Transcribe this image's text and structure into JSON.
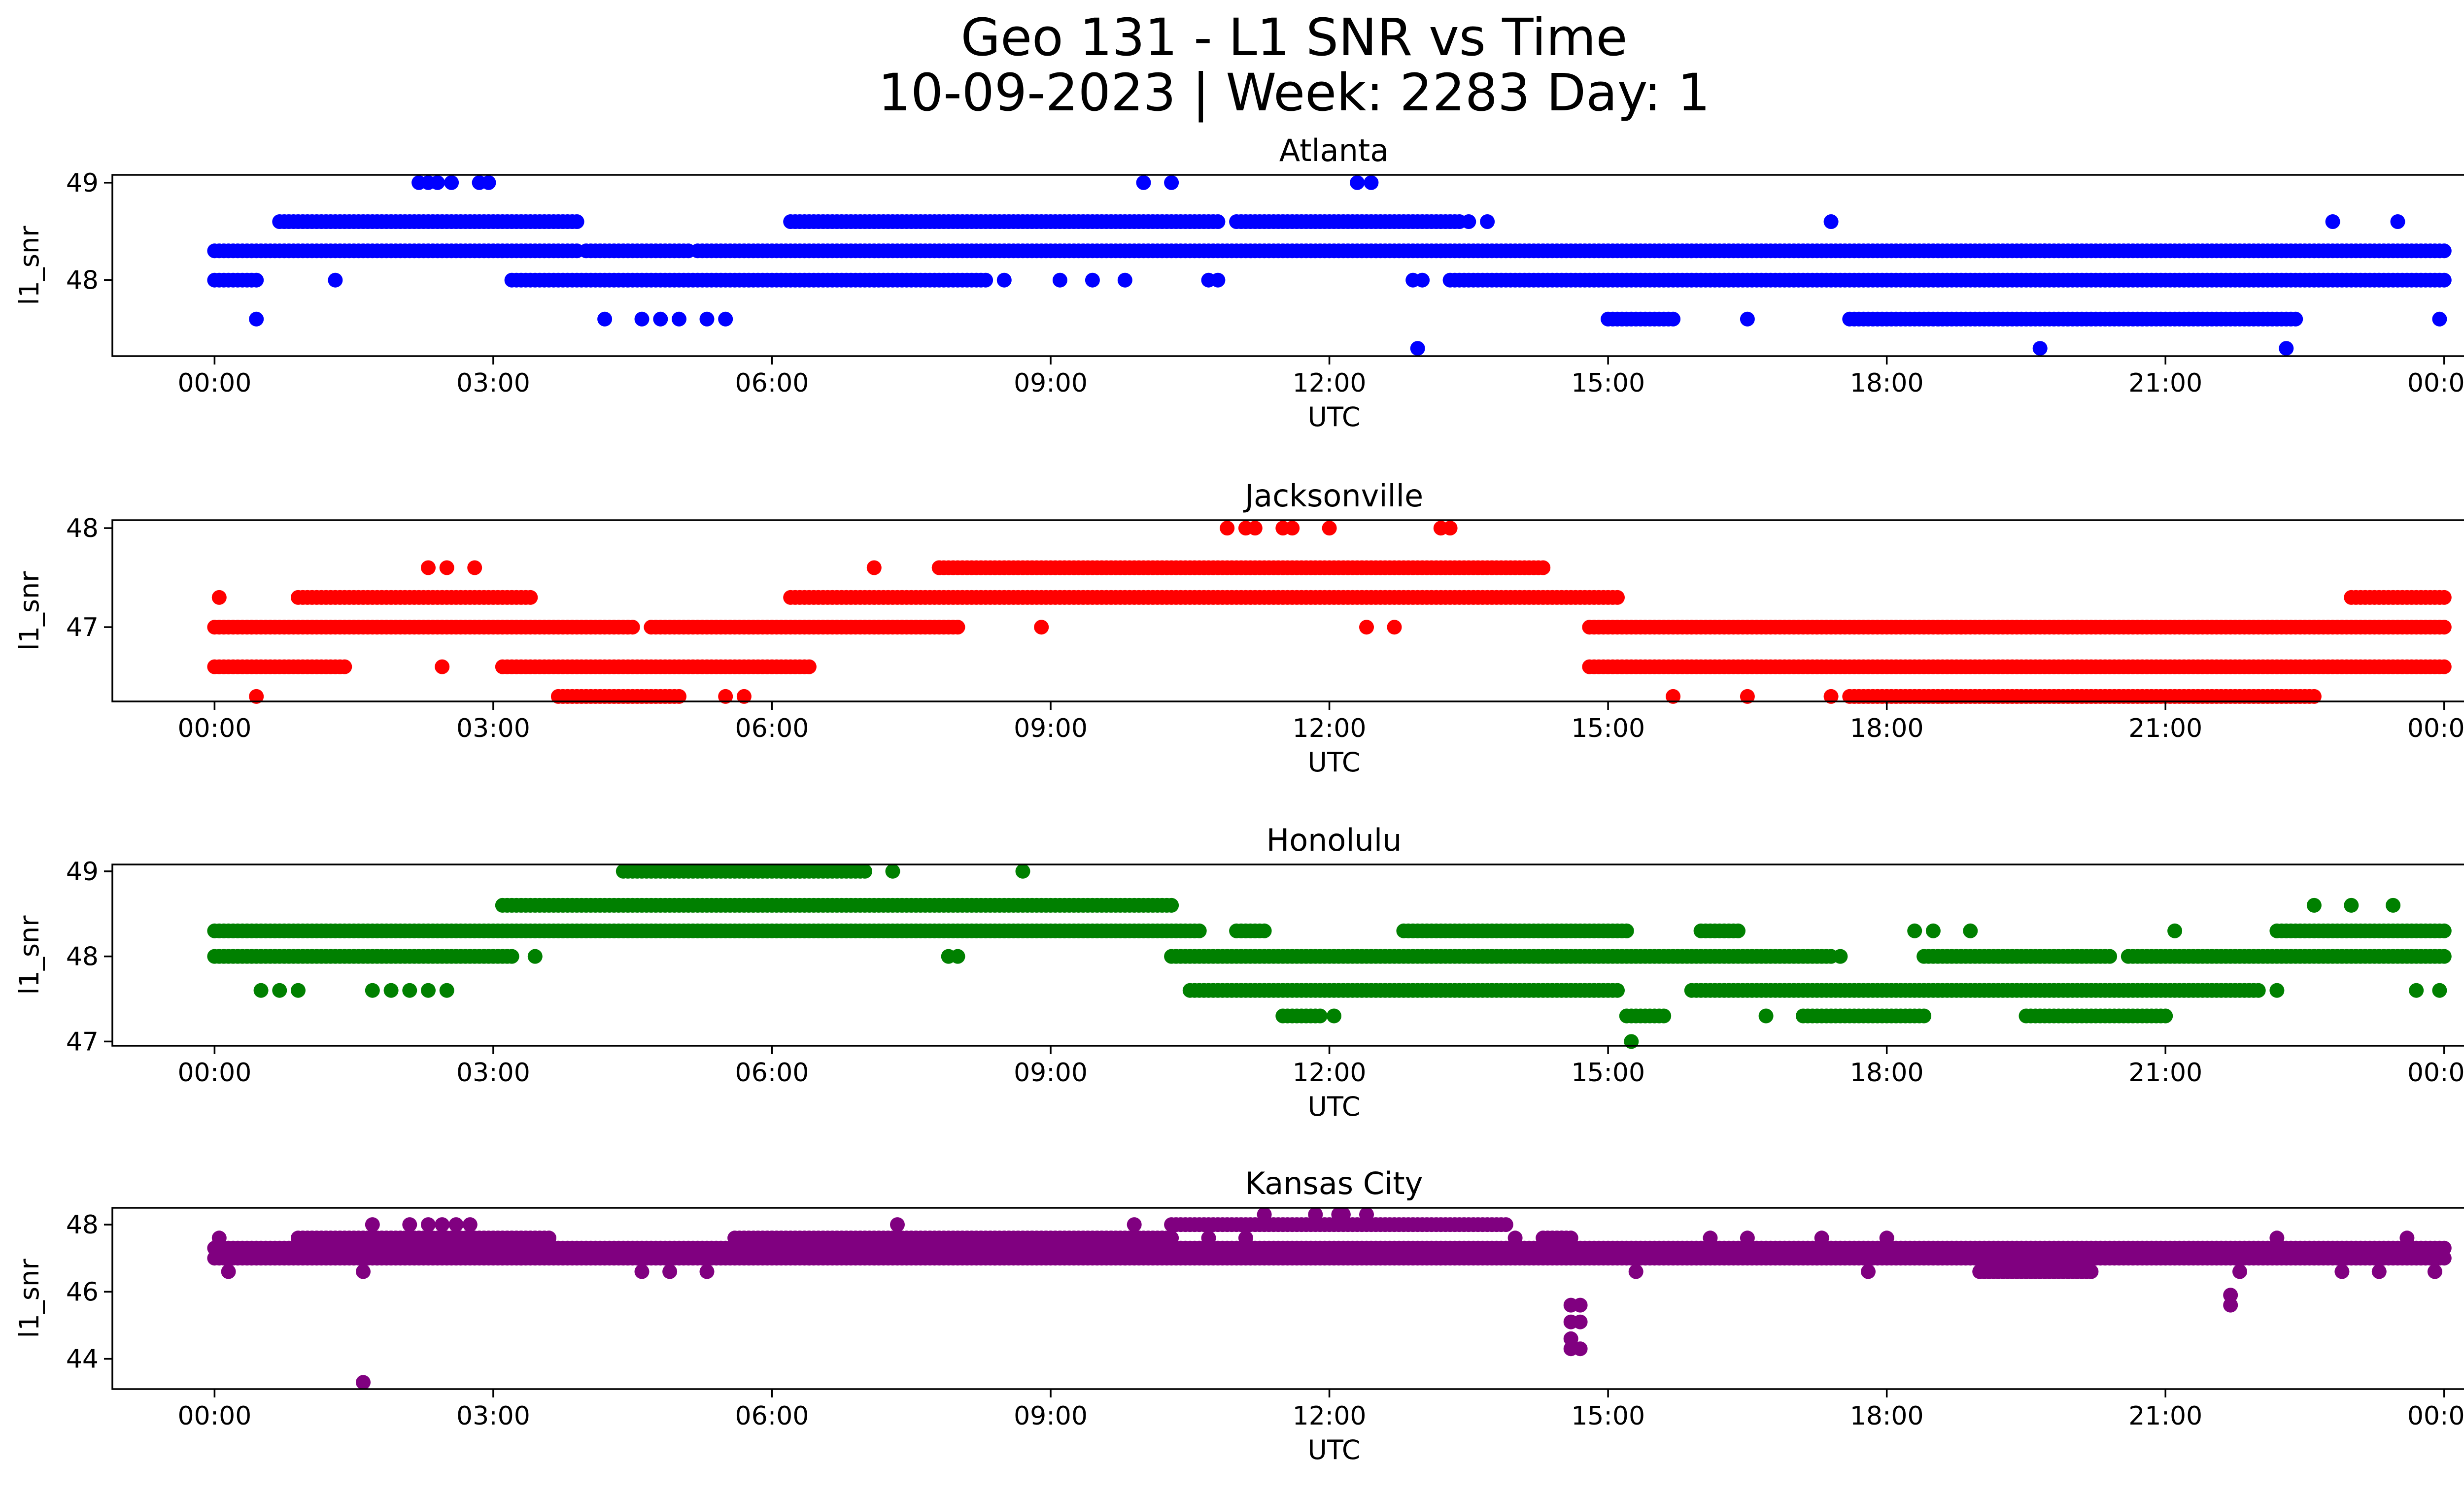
{
  "figure": {
    "title_line1": "Geo 131 - L1 SNR vs Time",
    "title_line2": "10-09-2023 | Week: 2283 Day: 1"
  },
  "chart_data": [
    {
      "type": "scatter",
      "title": "Atlanta",
      "xlabel": "UTC",
      "ylabel": "l1_snr",
      "color": "#0000ff",
      "xlim_hours": [
        -1.1,
        25.2
      ],
      "ylim": [
        47.22,
        49.08
      ],
      "x_ticks": [
        "00:00",
        "03:00",
        "06:00",
        "09:00",
        "12:00",
        "15:00",
        "18:00",
        "21:00",
        "00:00"
      ],
      "y_ticks": [
        48,
        49
      ],
      "y_tick_labels": [
        "48",
        "49"
      ],
      "bands": [
        {
          "y": 48.3,
          "ranges": [
            [
              0.0,
              3.9
            ],
            [
              4.0,
              5.1
            ],
            [
              5.2,
              24.0
            ]
          ]
        },
        {
          "y": 48.0,
          "ranges": [
            [
              0.0,
              0.45
            ],
            [
              3.2,
              8.3
            ],
            [
              13.3,
              24.0
            ]
          ]
        },
        {
          "y": 48.6,
          "ranges": [
            [
              0.7,
              3.9
            ],
            [
              6.2,
              10.8
            ],
            [
              11.0,
              13.4
            ]
          ]
        },
        {
          "y": 47.6,
          "ranges": [
            [
              15.0,
              15.7
            ],
            [
              17.6,
              22.4
            ]
          ]
        }
      ],
      "points": [
        [
          0.45,
          47.6
        ],
        [
          1.3,
          48.0
        ],
        [
          2.2,
          49.0
        ],
        [
          2.3,
          49.0
        ],
        [
          2.4,
          49.0
        ],
        [
          2.55,
          49.0
        ],
        [
          2.85,
          49.0
        ],
        [
          2.95,
          49.0
        ],
        [
          4.2,
          47.6
        ],
        [
          4.6,
          47.6
        ],
        [
          4.8,
          47.6
        ],
        [
          5.0,
          47.6
        ],
        [
          5.3,
          47.6
        ],
        [
          5.5,
          47.6
        ],
        [
          8.5,
          48.0
        ],
        [
          9.1,
          48.0
        ],
        [
          9.45,
          48.0
        ],
        [
          9.8,
          48.0
        ],
        [
          10.0,
          49.0
        ],
        [
          10.3,
          49.0
        ],
        [
          10.7,
          48.0
        ],
        [
          10.8,
          48.0
        ],
        [
          12.3,
          49.0
        ],
        [
          12.45,
          49.0
        ],
        [
          12.95,
          47.3
        ],
        [
          12.9,
          48.0
        ],
        [
          13.0,
          48.0
        ],
        [
          13.5,
          48.6
        ],
        [
          13.7,
          48.6
        ],
        [
          16.5,
          47.6
        ],
        [
          17.4,
          48.6
        ],
        [
          19.45,
          48.3
        ],
        [
          19.7,
          48.3
        ],
        [
          19.65,
          47.3
        ],
        [
          22.3,
          47.3
        ],
        [
          22.8,
          48.6
        ],
        [
          23.5,
          48.6
        ],
        [
          23.95,
          47.6
        ]
      ]
    },
    {
      "type": "scatter",
      "title": "Jacksonville",
      "xlabel": "UTC",
      "ylabel": "l1_snr",
      "color": "#ff0000",
      "xlim_hours": [
        -1.1,
        25.2
      ],
      "ylim": [
        46.25,
        48.08
      ],
      "x_ticks": [
        "00:00",
        "03:00",
        "06:00",
        "09:00",
        "12:00",
        "15:00",
        "18:00",
        "21:00",
        "00:00"
      ],
      "y_ticks": [
        47,
        48
      ],
      "y_tick_labels": [
        "47",
        "48"
      ],
      "bands": [
        {
          "y": 47.0,
          "ranges": [
            [
              0.0,
              4.5
            ],
            [
              4.7,
              8.0
            ],
            [
              14.8,
              24.0
            ]
          ]
        },
        {
          "y": 46.6,
          "ranges": [
            [
              0.0,
              1.4
            ],
            [
              3.1,
              6.4
            ],
            [
              14.8,
              24.0
            ]
          ]
        },
        {
          "y": 47.3,
          "ranges": [
            [
              0.9,
              3.4
            ],
            [
              6.2,
              15.1
            ],
            [
              23.0,
              24.0
            ]
          ]
        },
        {
          "y": 47.6,
          "ranges": [
            [
              7.8,
              14.3
            ]
          ]
        },
        {
          "y": 46.3,
          "ranges": [
            [
              3.7,
              5.0
            ],
            [
              17.6,
              22.6
            ]
          ]
        }
      ],
      "points": [
        [
          0.05,
          47.3
        ],
        [
          0.45,
          46.3
        ],
        [
          2.3,
          47.6
        ],
        [
          2.5,
          47.6
        ],
        [
          2.8,
          47.6
        ],
        [
          2.45,
          46.6
        ],
        [
          5.5,
          46.3
        ],
        [
          5.7,
          46.3
        ],
        [
          7.1,
          47.6
        ],
        [
          7.8,
          47.6
        ],
        [
          8.9,
          47.0
        ],
        [
          10.9,
          48.0
        ],
        [
          11.1,
          48.0
        ],
        [
          11.2,
          48.0
        ],
        [
          11.5,
          48.0
        ],
        [
          11.6,
          48.0
        ],
        [
          12.0,
          48.0
        ],
        [
          12.4,
          47.0
        ],
        [
          12.7,
          47.0
        ],
        [
          13.2,
          48.0
        ],
        [
          13.3,
          48.0
        ],
        [
          15.7,
          46.3
        ],
        [
          16.5,
          46.3
        ],
        [
          17.4,
          46.3
        ],
        [
          18.8,
          47.0
        ]
      ]
    },
    {
      "type": "scatter",
      "title": "Honolulu",
      "xlabel": "UTC",
      "ylabel": "l1_snr",
      "color": "#008000",
      "xlim_hours": [
        -1.1,
        25.2
      ],
      "ylim": [
        46.95,
        49.08
      ],
      "x_ticks": [
        "00:00",
        "03:00",
        "06:00",
        "09:00",
        "12:00",
        "15:00",
        "18:00",
        "21:00",
        "00:00"
      ],
      "y_ticks": [
        47,
        48,
        49
      ],
      "y_tick_labels": [
        "47",
        "48",
        "49"
      ],
      "bands": [
        {
          "y": 48.3,
          "ranges": [
            [
              0.0,
              10.6
            ],
            [
              11.0,
              11.3
            ],
            [
              12.8,
              15.2
            ],
            [
              16.0,
              16.4
            ],
            [
              22.2,
              24.0
            ]
          ]
        },
        {
          "y": 48.0,
          "ranges": [
            [
              0.0,
              3.2
            ],
            [
              10.3,
              17.4
            ],
            [
              18.4,
              20.4
            ],
            [
              20.6,
              24.0
            ]
          ]
        },
        {
          "y": 48.6,
          "ranges": [
            [
              3.1,
              10.3
            ]
          ]
        },
        {
          "y": 49.0,
          "ranges": [
            [
              4.4,
              6.3
            ],
            [
              6.1,
              7.0
            ]
          ]
        },
        {
          "y": 47.6,
          "ranges": [
            [
              10.5,
              15.1
            ],
            [
              15.9,
              22.0
            ]
          ]
        },
        {
          "y": 47.3,
          "ranges": [
            [
              11.5,
              11.9
            ],
            [
              15.2,
              15.6
            ],
            [
              17.1,
              18.4
            ],
            [
              19.5,
              21.0
            ]
          ]
        }
      ],
      "points": [
        [
          0.5,
          47.6
        ],
        [
          0.7,
          47.6
        ],
        [
          0.9,
          47.6
        ],
        [
          1.7,
          47.6
        ],
        [
          1.9,
          47.6
        ],
        [
          2.1,
          47.6
        ],
        [
          2.3,
          47.6
        ],
        [
          2.5,
          47.6
        ],
        [
          3.45,
          48.0
        ],
        [
          7.3,
          49.0
        ],
        [
          7.9,
          48.0
        ],
        [
          8.0,
          48.0
        ],
        [
          8.7,
          49.0
        ],
        [
          12.05,
          47.3
        ],
        [
          15.25,
          47.0
        ],
        [
          16.7,
          47.3
        ],
        [
          17.5,
          48.0
        ],
        [
          18.3,
          48.3
        ],
        [
          18.5,
          48.3
        ],
        [
          18.9,
          48.3
        ],
        [
          21.1,
          48.3
        ],
        [
          22.2,
          47.6
        ],
        [
          22.6,
          48.6
        ],
        [
          23.0,
          48.6
        ],
        [
          23.45,
          48.6
        ],
        [
          23.7,
          47.6
        ],
        [
          23.95,
          47.6
        ]
      ]
    },
    {
      "type": "scatter",
      "title": "Kansas City",
      "xlabel": "UTC",
      "ylabel": "l1_snr",
      "color": "#800080",
      "xlim_hours": [
        -1.1,
        25.2
      ],
      "ylim": [
        43.1,
        48.5
      ],
      "x_ticks": [
        "00:00",
        "03:00",
        "06:00",
        "09:00",
        "12:00",
        "15:00",
        "18:00",
        "21:00",
        "00:00"
      ],
      "y_ticks": [
        44,
        46,
        48
      ],
      "y_tick_labels": [
        "44",
        "46",
        "48"
      ],
      "bands": [
        {
          "y": 47.3,
          "ranges": [
            [
              0.0,
              24.0
            ]
          ]
        },
        {
          "y": 47.0,
          "ranges": [
            [
              0.0,
              24.0
            ]
          ]
        },
        {
          "y": 47.6,
          "ranges": [
            [
              0.9,
              3.6
            ],
            [
              5.6,
              10.3
            ],
            [
              14.3,
              14.6
            ]
          ]
        },
        {
          "y": 48.0,
          "ranges": [
            [
              10.3,
              13.9
            ]
          ]
        },
        {
          "y": 46.6,
          "ranges": [
            [
              19.0,
              20.2
            ]
          ]
        }
      ],
      "points": [
        [
          0.05,
          47.6
        ],
        [
          0.15,
          46.6
        ],
        [
          1.6,
          43.3
        ],
        [
          1.6,
          46.6
        ],
        [
          1.7,
          48.0
        ],
        [
          2.1,
          48.0
        ],
        [
          2.3,
          48.0
        ],
        [
          2.45,
          48.0
        ],
        [
          2.6,
          48.0
        ],
        [
          2.75,
          48.0
        ],
        [
          3.3,
          47.0
        ],
        [
          4.6,
          46.6
        ],
        [
          4.9,
          46.6
        ],
        [
          5.3,
          46.6
        ],
        [
          6.4,
          47.0
        ],
        [
          7.35,
          48.0
        ],
        [
          8.4,
          47.0
        ],
        [
          9.9,
          48.0
        ],
        [
          10.7,
          47.6
        ],
        [
          11.1,
          47.6
        ],
        [
          11.3,
          48.3
        ],
        [
          11.85,
          48.3
        ],
        [
          12.1,
          48.3
        ],
        [
          12.15,
          48.3
        ],
        [
          12.4,
          48.3
        ],
        [
          14.0,
          47.6
        ],
        [
          14.5,
          47.6
        ],
        [
          14.6,
          44.3
        ],
        [
          14.6,
          44.6
        ],
        [
          14.6,
          45.1
        ],
        [
          14.6,
          45.6
        ],
        [
          14.7,
          44.3
        ],
        [
          14.7,
          45.1
        ],
        [
          14.7,
          45.6
        ],
        [
          15.3,
          46.6
        ],
        [
          16.1,
          47.6
        ],
        [
          16.5,
          47.6
        ],
        [
          17.3,
          47.6
        ],
        [
          17.8,
          46.6
        ],
        [
          18.0,
          47.6
        ],
        [
          21.7,
          45.6
        ],
        [
          21.7,
          45.9
        ],
        [
          21.8,
          46.6
        ],
        [
          22.2,
          47.6
        ],
        [
          22.9,
          46.6
        ],
        [
          23.3,
          46.6
        ],
        [
          23.6,
          47.6
        ],
        [
          23.9,
          46.6
        ]
      ]
    }
  ]
}
